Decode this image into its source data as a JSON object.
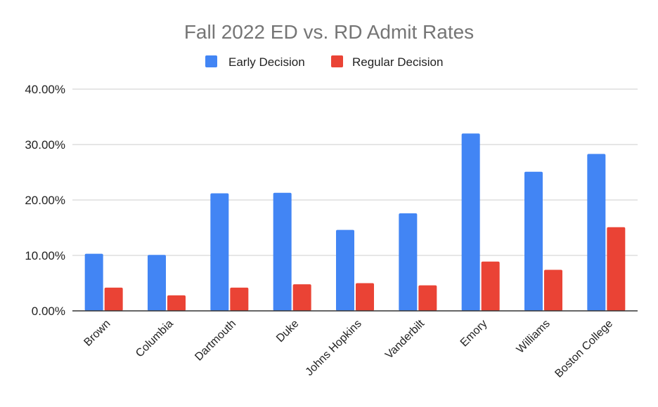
{
  "chart_data": {
    "type": "bar",
    "title": "Fall 2022 ED vs. RD Admit Rates",
    "categories": [
      "Brown",
      "Columbia",
      "Dartmouth",
      "Duke",
      "Johns Hopkins",
      "Vanderbilt",
      "Emory",
      "Williams",
      "Boston College"
    ],
    "series": [
      {
        "name": "Early Decision",
        "color": "#4285f4",
        "values": [
          0.103,
          0.101,
          0.212,
          0.213,
          0.146,
          0.176,
          0.32,
          0.251,
          0.283
        ]
      },
      {
        "name": "Regular Decision",
        "color": "#ea4335",
        "values": [
          0.042,
          0.028,
          0.042,
          0.048,
          0.05,
          0.046,
          0.089,
          0.074,
          0.151
        ]
      }
    ],
    "ylim": [
      0,
      0.4
    ],
    "yticks": [
      "0.00%",
      "10.00%",
      "20.00%",
      "30.00%",
      "40.00%"
    ],
    "xlabel": "",
    "ylabel": "",
    "legend_position": "top-center",
    "grid": true
  }
}
